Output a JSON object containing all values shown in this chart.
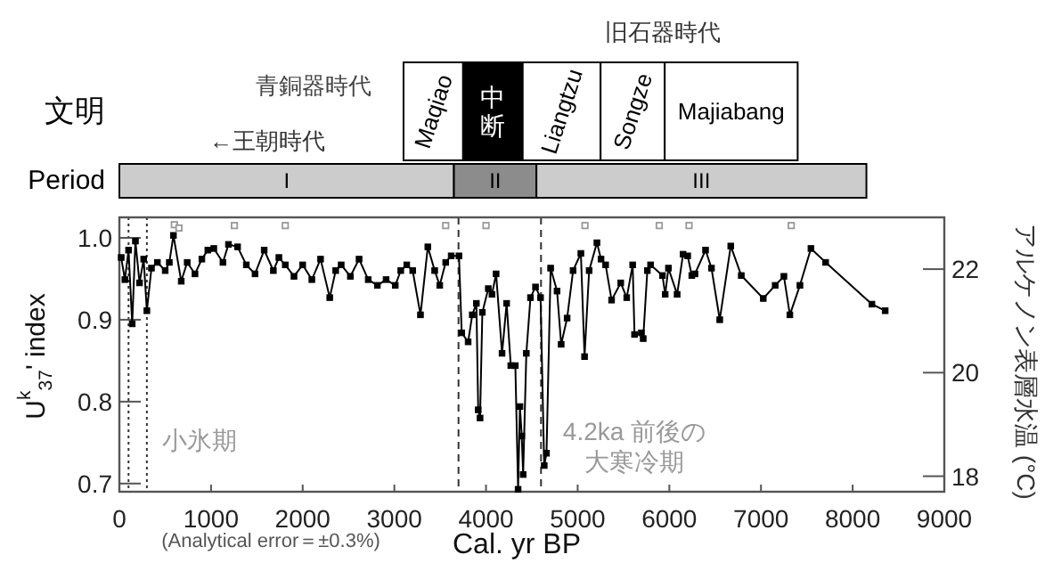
{
  "chart_data": [
    {
      "type": "bar",
      "orientation": "horizontal",
      "categories": [
        "文明",
        "Period"
      ],
      "xlim": [
        0,
        9000
      ],
      "tick_labels": "y",
      "series": [
        {
          "name": "Maqiao",
          "color": "#ffffff",
          "base": [
            3100,
            null
          ],
          "values": [
            650,
            null
          ]
        },
        {
          "name": "中断",
          "color": "#000000",
          "base": [
            3750,
            null
          ],
          "values": [
            650,
            null
          ]
        },
        {
          "name": "Liangtzu",
          "color": "#ffffff",
          "base": [
            4400,
            null
          ],
          "values": [
            850,
            null
          ]
        },
        {
          "name": "Songze",
          "color": "#ffffff",
          "base": [
            5250,
            null
          ],
          "values": [
            700,
            null
          ]
        },
        {
          "name": "Majiabang",
          "color": "#ffffff",
          "base": [
            5950,
            null
          ],
          "values": [
            1450,
            null
          ]
        },
        {
          "name": "I",
          "color": "#cccccc",
          "base": [
            null,
            0
          ],
          "values": [
            null,
            3650
          ]
        },
        {
          "name": "II",
          "color": "#8c8c8c",
          "base": [
            null,
            3650
          ],
          "values": [
            null,
            900
          ]
        },
        {
          "name": "III",
          "color": "#cccccc",
          "base": [
            null,
            4550
          ],
          "values": [
            null,
            3600
          ]
        }
      ],
      "annotations": [
        "旧石器時代",
        "青銅器時代",
        "←王朝時代"
      ]
    },
    {
      "type": "line",
      "xlabel": "Cal. yr BP",
      "ylabel": "U$^{k}$$_{37}$' index",
      "y2label": "アルケノン表層水温 (°C)",
      "xlim": [
        0,
        9000
      ],
      "xticks": [
        0,
        1000,
        2000,
        3000,
        4000,
        5000,
        6000,
        7000,
        8000,
        9000
      ],
      "ylim": [
        0.69,
        1.025
      ],
      "yticks": [
        0.7,
        0.8,
        0.9,
        {
          "value": 1,
          "label": "1.0"
        }
      ],
      "y2lim": [
        17.7,
        23.0
      ],
      "y2ticks": [
        18,
        20,
        22
      ],
      "grid": false,
      "series": [
        {
          "type": "line",
          "color": "#000000",
          "marker": "square",
          "line_style": "solid",
          "x": [
            20,
            60,
            100,
            140,
            175,
            220,
            265,
            300,
            350,
            415,
            500,
            545,
            590,
            675,
            740,
            825,
            900,
            965,
            1030,
            1130,
            1190,
            1290,
            1385,
            1480,
            1580,
            1680,
            1740,
            1810,
            1905,
            2000,
            2100,
            2195,
            2295,
            2360,
            2420,
            2520,
            2615,
            2715,
            2815,
            2910,
            3010,
            3070,
            3135,
            3200,
            3285,
            3365,
            3440,
            3495,
            3560,
            3620,
            3705,
            3735,
            3805,
            3850,
            3895,
            3915,
            3935,
            3960,
            4025,
            4065,
            4110,
            4175,
            4225,
            4270,
            4320,
            4350,
            4370,
            4390,
            4405,
            4440,
            4485,
            4540,
            4595,
            4635,
            4660,
            4705,
            4775,
            4820,
            4885,
            4950,
            5035,
            5075,
            5125,
            5210,
            5255,
            5305,
            5370,
            5470,
            5535,
            5600,
            5620,
            5695,
            5715,
            5760,
            5795,
            5925,
            5955,
            5990,
            6085,
            6150,
            6200,
            6245,
            6280,
            6395,
            6460,
            6550,
            6670,
            6785,
            7025,
            7155,
            7250,
            7315,
            7425,
            7545,
            7705,
            8210,
            8355
          ],
          "values": [
            0.976,
            0.949,
            0.985,
            0.895,
            0.996,
            0.945,
            0.974,
            0.911,
            0.963,
            0.97,
            0.96,
            0.97,
            1.003,
            0.947,
            0.97,
            0.956,
            0.974,
            0.985,
            0.987,
            0.97,
            0.992,
            0.989,
            0.967,
            0.956,
            0.985,
            0.96,
            0.976,
            0.967,
            0.953,
            0.967,
            0.949,
            0.974,
            0.927,
            0.96,
            0.967,
            0.953,
            0.974,
            0.949,
            0.942,
            0.949,
            0.942,
            0.96,
            0.967,
            0.96,
            0.906,
            0.989,
            0.96,
            0.942,
            0.97,
            0.978,
            0.978,
            0.884,
            0.873,
            0.906,
            0.92,
            0.79,
            0.78,
            0.909,
            0.938,
            0.931,
            0.956,
            0.859,
            0.92,
            0.844,
            0.844,
            0.693,
            0.794,
            0.758,
            0.711,
            0.859,
            0.927,
            0.94,
            0.927,
            0.722,
            0.737,
            0.963,
            0.935,
            0.87,
            0.902,
            0.96,
            0.981,
            0.855,
            0.96,
            0.994,
            0.974,
            0.967,
            0.924,
            0.945,
            0.927,
            0.967,
            0.882,
            0.884,
            0.877,
            0.96,
            0.967,
            0.954,
            0.931,
            0.963,
            0.931,
            0.98,
            0.978,
            0.954,
            0.956,
            0.985,
            0.963,
            0.9,
            0.99,
            0.954,
            0.926,
            0.942,
            0.953,
            0.906,
            0.942,
            0.987,
            0.97,
            0.919,
            0.911
          ]
        },
        {
          "type": "scatter",
          "color": "#999999",
          "marker": "square",
          "x": [
            600,
            650,
            1255,
            1810,
            3560,
            4000,
            5080,
            5890,
            6215,
            7330
          ],
          "values": [
            1.016,
            1.012,
            1.015,
            1.015,
            1.015,
            1.015,
            1.015,
            1.015,
            1.015,
            1.015
          ]
        }
      ],
      "ref_lines": [
        {
          "axis": "x",
          "value": 100,
          "line_style": "dotted"
        },
        {
          "axis": "x",
          "value": 300,
          "line_style": "dotted"
        },
        {
          "axis": "x",
          "value": 3700,
          "line_style": "dashed"
        },
        {
          "axis": "x",
          "value": 4600,
          "line_style": "dashed"
        }
      ],
      "annotations": [
        "小氷期",
        "4.2ka 前後の",
        "大寒冷期",
        "(Analytical error＝±0.3%)"
      ]
    }
  ]
}
